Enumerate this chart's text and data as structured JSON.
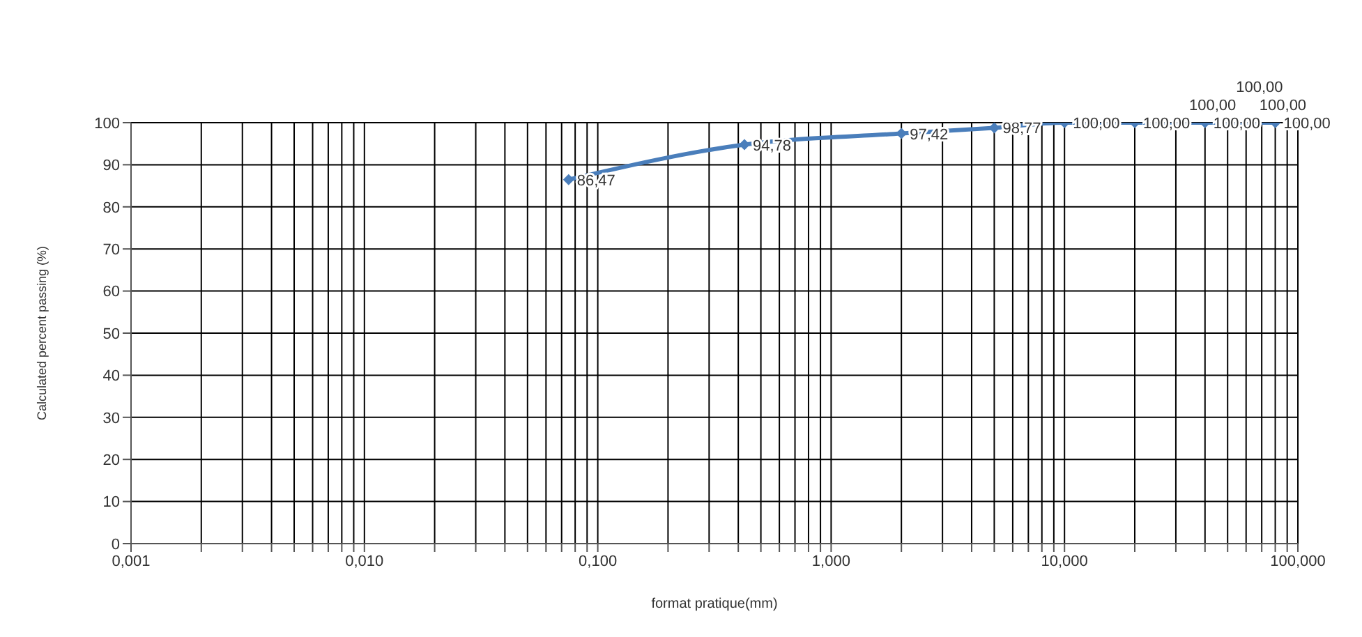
{
  "chart_data": {
    "type": "line",
    "xlabel": "format pratique(mm)",
    "ylabel": "Calculated percent  passing (%)",
    "x": [
      0.075,
      0.425,
      2,
      5,
      10,
      20,
      31.5,
      40,
      50,
      63,
      80
    ],
    "series": [
      {
        "color": "#4a7ebb",
        "values": [
          86.47,
          94.78,
          97.42,
          98.77,
          100,
          100,
          100,
          100,
          100,
          100,
          100
        ],
        "value_labels": [
          "86,47",
          "94,78",
          "97,42",
          "98,77",
          "100,00",
          "100,00",
          "100,00",
          "100,00",
          "100,00",
          "100,00",
          "100,00"
        ]
      }
    ],
    "log": "x",
    "marker": "diamond",
    "line_style": "solid",
    "grid": true,
    "legend": false,
    "xlim": [
      0.001,
      100
    ],
    "xticks": [
      {
        "value": 0.001,
        "label": "0,001"
      },
      {
        "value": 0.002,
        "label": null
      },
      {
        "value": 0.003,
        "label": null
      },
      {
        "value": 0.004,
        "label": null
      },
      {
        "value": 0.005,
        "label": null
      },
      {
        "value": 0.006,
        "label": null
      },
      {
        "value": 0.007,
        "label": null
      },
      {
        "value": 0.008,
        "label": null
      },
      {
        "value": 0.009,
        "label": null
      },
      {
        "value": 0.01,
        "label": "0,010"
      },
      {
        "value": 0.02,
        "label": null
      },
      {
        "value": 0.03,
        "label": null
      },
      {
        "value": 0.04,
        "label": null
      },
      {
        "value": 0.05,
        "label": null
      },
      {
        "value": 0.06,
        "label": null
      },
      {
        "value": 0.07,
        "label": null
      },
      {
        "value": 0.08,
        "label": null
      },
      {
        "value": 0.09,
        "label": null
      },
      {
        "value": 0.1,
        "label": "0,100"
      },
      {
        "value": 0.2,
        "label": null
      },
      {
        "value": 0.3,
        "label": null
      },
      {
        "value": 0.4,
        "label": null
      },
      {
        "value": 0.5,
        "label": null
      },
      {
        "value": 0.6,
        "label": null
      },
      {
        "value": 0.7,
        "label": null
      },
      {
        "value": 0.8,
        "label": null
      },
      {
        "value": 0.9,
        "label": null
      },
      {
        "value": 1,
        "label": "1,000"
      },
      {
        "value": 2,
        "label": null
      },
      {
        "value": 3,
        "label": null
      },
      {
        "value": 4,
        "label": null
      },
      {
        "value": 5,
        "label": null
      },
      {
        "value": 6,
        "label": null
      },
      {
        "value": 7,
        "label": null
      },
      {
        "value": 8,
        "label": null
      },
      {
        "value": 9,
        "label": null
      },
      {
        "value": 10,
        "label": "10,000"
      },
      {
        "value": 20,
        "label": null
      },
      {
        "value": 30,
        "label": null
      },
      {
        "value": 40,
        "label": null
      },
      {
        "value": 50,
        "label": null
      },
      {
        "value": 60,
        "label": null
      },
      {
        "value": 70,
        "label": null
      },
      {
        "value": 80,
        "label": null
      },
      {
        "value": 90,
        "label": null
      },
      {
        "value": 100,
        "label": "100,000"
      }
    ],
    "ylim": [
      0,
      100
    ],
    "yticks": [
      0,
      10,
      20,
      30,
      40,
      50,
      60,
      70,
      80,
      90,
      100
    ]
  }
}
